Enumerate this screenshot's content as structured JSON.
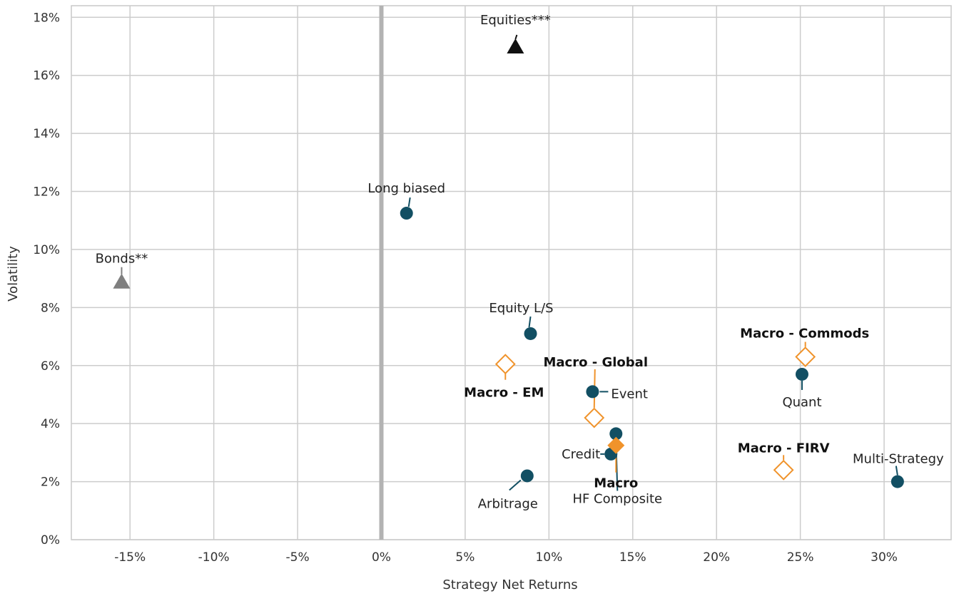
{
  "chart_data": {
    "type": "scatter",
    "xlabel": "Strategy Net Returns",
    "ylabel": "Volatility",
    "xlim": [
      -0.185,
      0.34
    ],
    "ylim": [
      0,
      0.184
    ],
    "x_ticks": [
      -0.15,
      -0.1,
      -0.05,
      0,
      0.05,
      0.1,
      0.15,
      0.2,
      0.25,
      0.3
    ],
    "x_tick_labels": [
      "-15%",
      "-10%",
      "-5%",
      "0%",
      "5%",
      "10%",
      "15%",
      "20%",
      "25%",
      "30%"
    ],
    "y_ticks": [
      0,
      0.02,
      0.04,
      0.06,
      0.08,
      0.1,
      0.12,
      0.14,
      0.16,
      0.18
    ],
    "y_tick_labels": [
      "0%",
      "2%",
      "4%",
      "6%",
      "8%",
      "10%",
      "12%",
      "14%",
      "16%",
      "18%"
    ],
    "grid": true,
    "zero_line": true,
    "series": [
      {
        "marker": "circle",
        "color": "#124F63",
        "points": [
          {
            "label": "Long biased",
            "x": 0.015,
            "y": 0.1125,
            "bold": false
          },
          {
            "label": "Equity L/S",
            "x": 0.089,
            "y": 0.071,
            "bold": false
          },
          {
            "label": "Event",
            "x": 0.126,
            "y": 0.051,
            "bold": false
          },
          {
            "label": "Quant",
            "x": 0.251,
            "y": 0.057,
            "bold": false
          },
          {
            "label": "Credit",
            "x": 0.137,
            "y": 0.0295,
            "bold": false
          },
          {
            "label": "HF Composite",
            "x": 0.14,
            "y": 0.0365,
            "bold": false
          },
          {
            "label": "Arbitrage",
            "x": 0.087,
            "y": 0.022,
            "bold": false
          },
          {
            "label": "Multi-Strategy",
            "x": 0.308,
            "y": 0.02,
            "bold": false
          }
        ]
      },
      {
        "marker": "diamond-open",
        "color": "#F0932B",
        "points": [
          {
            "label": "Macro - EM",
            "x": 0.074,
            "y": 0.0605,
            "bold": true
          },
          {
            "label": "Macro - Global",
            "x": 0.127,
            "y": 0.042,
            "bold": true
          },
          {
            "label": "Macro - Commods",
            "x": 0.253,
            "y": 0.063,
            "bold": true
          },
          {
            "label": "Macro - FIRV",
            "x": 0.24,
            "y": 0.024,
            "bold": true
          }
        ]
      },
      {
        "marker": "diamond-filled",
        "color": "#F0932B",
        "points": [
          {
            "label": "Macro",
            "x": 0.14,
            "y": 0.0325,
            "bold": true
          }
        ]
      },
      {
        "marker": "triangle",
        "color": "#111111",
        "points": [
          {
            "label": "Equities***",
            "x": 0.08,
            "y": 0.17,
            "bold": false
          }
        ]
      },
      {
        "marker": "triangle",
        "color": "#7f7f7f",
        "points": [
          {
            "label": "Bonds**",
            "x": -0.155,
            "y": 0.089,
            "bold": false
          }
        ]
      }
    ]
  }
}
